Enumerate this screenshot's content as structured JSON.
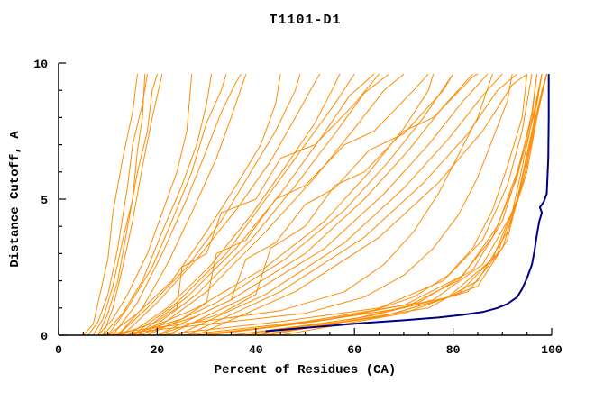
{
  "chart_data": {
    "type": "line",
    "title": "T1101-D1",
    "xlabel": "Percent of Residues (CA)",
    "ylabel": "Distance Cutoff, A",
    "xlim": [
      0,
      100
    ],
    "ylim": [
      0,
      10
    ],
    "xticks": [
      0,
      20,
      40,
      60,
      80,
      100
    ],
    "yticks": [
      0,
      5,
      10
    ],
    "x_minor_step": 5,
    "y_minor_step": 1,
    "grid": false,
    "legend": "none",
    "colors": {
      "predictions": "#ff8c00",
      "reference": "#000080",
      "axis": "#000000",
      "background": "#ffffff"
    },
    "series_meta": {
      "predictions_name": "prediction-models",
      "reference_name": "reference-model"
    },
    "prediction_curves": [
      [
        [
          5,
          0
        ],
        [
          7,
          0.4
        ],
        [
          8,
          1.2
        ],
        [
          10,
          2.8
        ],
        [
          11,
          4.5
        ],
        [
          13,
          6.5
        ],
        [
          15,
          8.2
        ],
        [
          16,
          9.6
        ]
      ],
      [
        [
          6,
          0
        ],
        [
          8,
          0.5
        ],
        [
          10,
          1.5
        ],
        [
          12,
          3.2
        ],
        [
          14,
          5.5
        ],
        [
          15,
          7.0
        ],
        [
          17,
          8.5
        ],
        [
          18,
          9.6
        ]
      ],
      [
        [
          7,
          0
        ],
        [
          9,
          0.6
        ],
        [
          11,
          1.8
        ],
        [
          13,
          3.5
        ],
        [
          15,
          5.0
        ],
        [
          16,
          6.8
        ],
        [
          17,
          8.0
        ],
        [
          17.5,
          9.6
        ]
      ],
      [
        [
          8,
          0
        ],
        [
          10,
          0.8
        ],
        [
          12,
          2.0
        ],
        [
          14,
          4.0
        ],
        [
          16,
          6.0
        ],
        [
          18,
          7.5
        ],
        [
          19,
          9.0
        ],
        [
          20,
          9.6
        ]
      ],
      [
        [
          9,
          0
        ],
        [
          11,
          1.0
        ],
        [
          13,
          2.5
        ],
        [
          15,
          4.2
        ],
        [
          17,
          6.2
        ],
        [
          19,
          8.0
        ],
        [
          21,
          9.6
        ]
      ],
      [
        [
          8,
          0
        ],
        [
          11,
          0.6
        ],
        [
          14,
          1.5
        ],
        [
          18,
          3.0
        ],
        [
          21,
          4.5
        ],
        [
          24,
          6.0
        ],
        [
          26,
          7.5
        ],
        [
          27,
          9.6
        ]
      ],
      [
        [
          9,
          0
        ],
        [
          13,
          0.8
        ],
        [
          17,
          2.0
        ],
        [
          21,
          3.8
        ],
        [
          25,
          5.5
        ],
        [
          28,
          7.0
        ],
        [
          30,
          8.5
        ],
        [
          31,
          9.6
        ]
      ],
      [
        [
          10,
          0
        ],
        [
          14,
          1.0
        ],
        [
          19,
          2.5
        ],
        [
          23,
          4.2
        ],
        [
          27,
          6.0
        ],
        [
          30,
          7.8
        ],
        [
          33,
          9.0
        ],
        [
          34,
          9.6
        ]
      ],
      [
        [
          11,
          0
        ],
        [
          16,
          1.2
        ],
        [
          21,
          3.0
        ],
        [
          26,
          5.0
        ],
        [
          30,
          6.8
        ],
        [
          33,
          8.2
        ],
        [
          36,
          9.3
        ],
        [
          37,
          9.6
        ]
      ],
      [
        [
          12,
          0
        ],
        [
          17,
          1.0
        ],
        [
          22,
          2.6
        ],
        [
          27,
          4.5
        ],
        [
          32,
          6.5
        ],
        [
          35,
          8.0
        ],
        [
          38,
          9.6
        ]
      ],
      [
        [
          10,
          0
        ],
        [
          16,
          0.8
        ],
        [
          23,
          2.0
        ],
        [
          30,
          3.8
        ],
        [
          36,
          5.5
        ],
        [
          41,
          7.0
        ],
        [
          44,
          8.5
        ],
        [
          45,
          9.6
        ]
      ],
      [
        [
          12,
          0
        ],
        [
          18,
          1.0
        ],
        [
          26,
          2.5
        ],
        [
          33,
          4.2
        ],
        [
          39,
          6.0
        ],
        [
          44,
          7.5
        ],
        [
          48,
          9.0
        ],
        [
          49,
          9.6
        ]
      ],
      [
        [
          13,
          0
        ],
        [
          20,
          1.2
        ],
        [
          28,
          2.8
        ],
        [
          36,
          4.6
        ],
        [
          43,
          6.4
        ],
        [
          48,
          8.0
        ],
        [
          52,
          9.3
        ],
        [
          53,
          9.6
        ]
      ],
      [
        [
          14,
          0
        ],
        [
          22,
          1.0
        ],
        [
          31,
          2.6
        ],
        [
          39,
          4.4
        ],
        [
          46,
          6.2
        ],
        [
          52,
          7.8
        ],
        [
          56,
          9.2
        ],
        [
          57,
          9.6
        ]
      ],
      [
        [
          15,
          0
        ],
        [
          24,
          1.2
        ],
        [
          34,
          3.0
        ],
        [
          42,
          5.0
        ],
        [
          50,
          7.0
        ],
        [
          56,
          8.5
        ],
        [
          60,
          9.6
        ]
      ],
      [
        [
          16,
          0
        ],
        [
          26,
          1.4
        ],
        [
          36,
          3.2
        ],
        [
          45,
          5.2
        ],
        [
          53,
          7.2
        ],
        [
          59,
          8.8
        ],
        [
          64,
          9.6
        ]
      ],
      [
        [
          17,
          0
        ],
        [
          28,
          1.5
        ],
        [
          39,
          3.5
        ],
        [
          48,
          5.5
        ],
        [
          56,
          7.4
        ],
        [
          62,
          8.9
        ],
        [
          67,
          9.6
        ]
      ],
      [
        [
          18,
          0
        ],
        [
          30,
          1.6
        ],
        [
          42,
          3.8
        ],
        [
          52,
          5.8
        ],
        [
          60,
          7.6
        ],
        [
          66,
          9.0
        ],
        [
          70,
          9.6
        ]
      ],
      [
        [
          15,
          0
        ],
        [
          28,
          1.0
        ],
        [
          42,
          2.5
        ],
        [
          54,
          4.2
        ],
        [
          63,
          6.0
        ],
        [
          70,
          7.6
        ],
        [
          75,
          9.0
        ],
        [
          76,
          9.6
        ]
      ],
      [
        [
          18,
          0
        ],
        [
          32,
          1.2
        ],
        [
          46,
          2.8
        ],
        [
          58,
          4.6
        ],
        [
          67,
          6.4
        ],
        [
          74,
          8.0
        ],
        [
          80,
          9.6
        ]
      ],
      [
        [
          20,
          0
        ],
        [
          35,
          1.3
        ],
        [
          50,
          3.0
        ],
        [
          62,
          5.0
        ],
        [
          71,
          6.8
        ],
        [
          78,
          8.4
        ],
        [
          84,
          9.6
        ]
      ],
      [
        [
          22,
          0
        ],
        [
          38,
          1.4
        ],
        [
          54,
          3.2
        ],
        [
          66,
          5.2
        ],
        [
          75,
          7.0
        ],
        [
          82,
          8.6
        ],
        [
          87,
          9.6
        ]
      ],
      [
        [
          24,
          0
        ],
        [
          42,
          1.5
        ],
        [
          58,
          3.4
        ],
        [
          70,
          5.4
        ],
        [
          79,
          7.2
        ],
        [
          86,
          8.8
        ],
        [
          90,
          9.6
        ]
      ],
      [
        [
          26,
          0
        ],
        [
          45,
          1.6
        ],
        [
          62,
          3.6
        ],
        [
          74,
          5.6
        ],
        [
          83,
          7.4
        ],
        [
          89,
          9.0
        ],
        [
          93,
          9.6
        ]
      ],
      [
        [
          28,
          0
        ],
        [
          48,
          1.6
        ],
        [
          65,
          3.6
        ],
        [
          77,
          5.6
        ],
        [
          86,
          7.5
        ],
        [
          92,
          9.2
        ],
        [
          95,
          9.6
        ]
      ],
      [
        [
          20,
          0
        ],
        [
          45,
          0.5
        ],
        [
          65,
          1.0
        ],
        [
          78,
          2.0
        ],
        [
          86,
          3.5
        ],
        [
          91,
          5.5
        ],
        [
          94,
          7.5
        ],
        [
          96,
          9.6
        ]
      ],
      [
        [
          25,
          0
        ],
        [
          50,
          0.5
        ],
        [
          70,
          1.1
        ],
        [
          82,
          2.2
        ],
        [
          89,
          4.0
        ],
        [
          93,
          6.0
        ],
        [
          96,
          8.0
        ],
        [
          97,
          9.6
        ]
      ],
      [
        [
          30,
          0
        ],
        [
          55,
          0.6
        ],
        [
          73,
          1.2
        ],
        [
          84,
          2.4
        ],
        [
          90,
          4.2
        ],
        [
          94,
          6.5
        ],
        [
          97,
          8.5
        ],
        [
          98,
          9.6
        ]
      ],
      [
        [
          35,
          0
        ],
        [
          60,
          0.6
        ],
        [
          76,
          1.3
        ],
        [
          86,
          2.6
        ],
        [
          92,
          4.5
        ],
        [
          95,
          7.0
        ],
        [
          98,
          9.6
        ]
      ],
      [
        [
          38,
          0
        ],
        [
          63,
          0.7
        ],
        [
          79,
          1.4
        ],
        [
          88,
          2.8
        ],
        [
          93,
          5.0
        ],
        [
          96,
          7.5
        ],
        [
          99,
          9.6
        ]
      ],
      [
        [
          40,
          0
        ],
        [
          66,
          0.7
        ],
        [
          81,
          1.5
        ],
        [
          89,
          3.0
        ],
        [
          94,
          5.5
        ],
        [
          97,
          8.0
        ],
        [
          99,
          9.6
        ]
      ],
      [
        [
          42,
          0
        ],
        [
          68,
          0.8
        ],
        [
          83,
          1.6
        ],
        [
          90,
          3.2
        ],
        [
          95,
          6.0
        ],
        [
          97.5,
          8.5
        ],
        [
          99,
          9.6
        ]
      ],
      [
        [
          45,
          0
        ],
        [
          70,
          0.8
        ],
        [
          85,
          1.8
        ],
        [
          91,
          3.5
        ],
        [
          95,
          6.5
        ],
        [
          98,
          9.0
        ],
        [
          99,
          9.6
        ]
      ],
      [
        [
          35,
          0
        ],
        [
          58,
          0.5
        ],
        [
          75,
          1.0
        ],
        [
          85,
          2.0
        ],
        [
          91,
          3.8
        ],
        [
          95,
          6.2
        ],
        [
          97,
          8.6
        ],
        [
          98,
          9.6
        ]
      ],
      [
        [
          28,
          0
        ],
        [
          52,
          0.5
        ],
        [
          70,
          1.0
        ],
        [
          81,
          2.0
        ],
        [
          88,
          3.6
        ],
        [
          93,
          5.8
        ],
        [
          96,
          8.2
        ],
        [
          97,
          9.6
        ]
      ],
      [
        [
          12,
          0
        ],
        [
          20,
          0.5
        ],
        [
          24,
          1.0
        ],
        [
          25,
          2.5
        ],
        [
          30,
          3.0
        ],
        [
          33,
          4.5
        ],
        [
          40,
          5.0
        ],
        [
          45,
          6.5
        ],
        [
          52,
          7.0
        ],
        [
          60,
          8.5
        ],
        [
          65,
          9.6
        ]
      ],
      [
        [
          14,
          0
        ],
        [
          25,
          0.6
        ],
        [
          30,
          1.2
        ],
        [
          32,
          3.0
        ],
        [
          38,
          3.5
        ],
        [
          44,
          5.0
        ],
        [
          50,
          5.5
        ],
        [
          58,
          7.0
        ],
        [
          64,
          7.5
        ],
        [
          72,
          9.0
        ],
        [
          75,
          9.6
        ]
      ],
      [
        [
          20,
          0
        ],
        [
          33,
          0.8
        ],
        [
          40,
          1.5
        ],
        [
          43,
          3.2
        ],
        [
          50,
          4.0
        ],
        [
          56,
          5.5
        ],
        [
          62,
          6.0
        ],
        [
          70,
          7.5
        ],
        [
          76,
          8.0
        ],
        [
          84,
          9.5
        ],
        [
          85,
          9.6
        ]
      ],
      [
        [
          16,
          0
        ],
        [
          28,
          0.7
        ],
        [
          35,
          1.3
        ],
        [
          38,
          2.8
        ],
        [
          44,
          3.4
        ],
        [
          50,
          4.8
        ],
        [
          56,
          5.4
        ],
        [
          63,
          6.8
        ],
        [
          70,
          7.4
        ],
        [
          78,
          9.0
        ],
        [
          80,
          9.6
        ]
      ],
      [
        [
          10,
          0
        ],
        [
          30,
          0.4
        ],
        [
          50,
          0.8
        ],
        [
          62,
          1.4
        ],
        [
          70,
          2.2
        ],
        [
          76,
          3.2
        ],
        [
          81,
          4.4
        ],
        [
          85,
          5.8
        ],
        [
          88,
          7.2
        ],
        [
          91,
          8.6
        ],
        [
          92,
          9.6
        ]
      ],
      [
        [
          8,
          0
        ],
        [
          25,
          0.4
        ],
        [
          45,
          0.9
        ],
        [
          58,
          1.6
        ],
        [
          66,
          2.6
        ],
        [
          72,
          3.8
        ],
        [
          77,
          5.2
        ],
        [
          81,
          6.6
        ],
        [
          85,
          8.0
        ],
        [
          88,
          9.6
        ]
      ],
      [
        [
          30,
          0
        ],
        [
          48,
          0.4
        ],
        [
          62,
          0.8
        ],
        [
          72,
          1.4
        ],
        [
          79,
          2.2
        ],
        [
          84,
          3.2
        ],
        [
          88,
          4.6
        ],
        [
          91,
          6.2
        ],
        [
          94,
          8.0
        ],
        [
          95,
          9.6
        ]
      ]
    ],
    "reference_curve": [
      [
        42,
        0.15
      ],
      [
        52,
        0.3
      ],
      [
        62,
        0.45
      ],
      [
        70,
        0.55
      ],
      [
        77,
        0.65
      ],
      [
        82,
        0.75
      ],
      [
        86,
        0.85
      ],
      [
        89,
        1.0
      ],
      [
        91,
        1.15
      ],
      [
        93,
        1.4
      ],
      [
        94,
        1.7
      ],
      [
        95,
        2.1
      ],
      [
        96,
        2.6
      ],
      [
        96.5,
        3.1
      ],
      [
        97,
        3.7
      ],
      [
        97.5,
        4.2
      ],
      [
        98,
        4.5
      ],
      [
        97.6,
        4.7
      ],
      [
        98.4,
        4.9
      ],
      [
        99,
        5.2
      ],
      [
        99.3,
        6.5
      ],
      [
        99.4,
        8.0
      ],
      [
        99.4,
        9.6
      ]
    ]
  }
}
